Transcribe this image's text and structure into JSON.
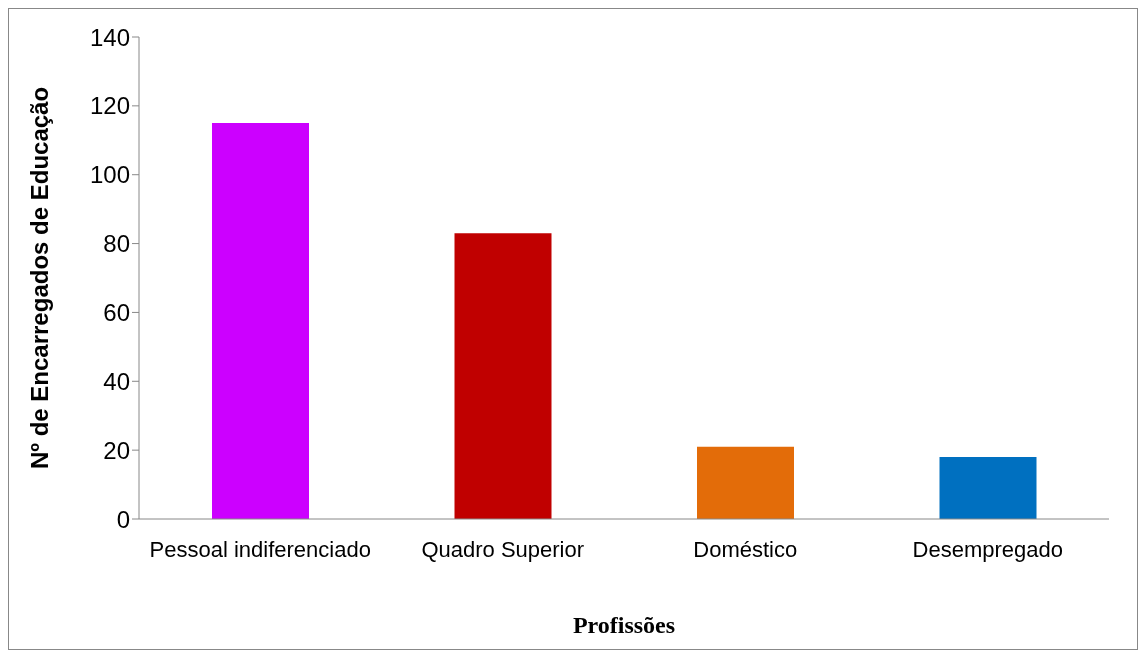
{
  "chart_data": {
    "type": "bar",
    "xlabel": "Profissões",
    "ylabel": "Nº de Encarregados de Educação",
    "categories": [
      "Pessoal indiferenciado",
      "Quadro Superior",
      "Doméstico",
      "Desempregado"
    ],
    "values": [
      115,
      83,
      21,
      18
    ],
    "colors": [
      "#cc00ff",
      "#c00000",
      "#e36c09",
      "#0070c0"
    ],
    "ylim": [
      0,
      140
    ],
    "yticks": [
      0,
      20,
      40,
      60,
      80,
      100,
      120,
      140
    ],
    "grid": false,
    "legend": false
  }
}
